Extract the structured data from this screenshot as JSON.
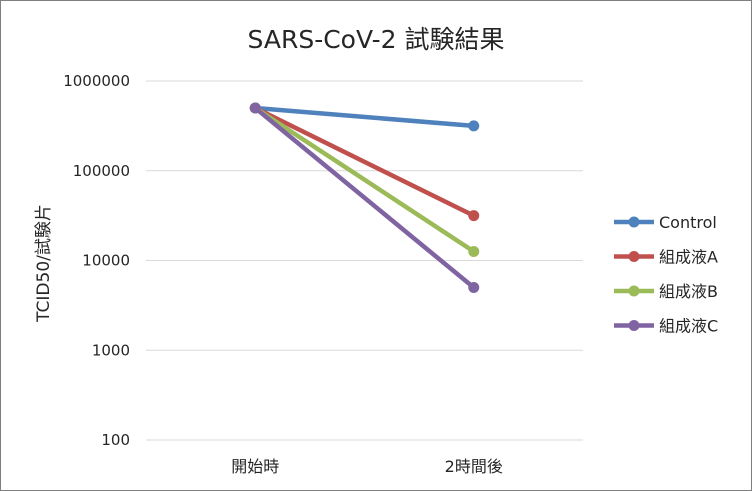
{
  "chart_data": {
    "type": "line",
    "title": "SARS-CoV-2 試験結果",
    "xlabel": "",
    "ylabel": "TCID50/試験片",
    "categories": [
      "開始時",
      "2時間後"
    ],
    "yscale": "log",
    "ylim": [
      100,
      1000000
    ],
    "yticks": [
      "1000000",
      "100000",
      "10000",
      "1000",
      "100"
    ],
    "grid": true,
    "legend_position": "right",
    "series": [
      {
        "name": "Control",
        "color": "#4f81bd",
        "values": [
          500000,
          316000
        ]
      },
      {
        "name": "組成液A",
        "color": "#c0504d",
        "values": [
          500000,
          31600
        ]
      },
      {
        "name": "組成液B",
        "color": "#9bbb59",
        "values": [
          500000,
          12600
        ]
      },
      {
        "name": "組成液C",
        "color": "#8064a2",
        "values": [
          500000,
          5000
        ]
      }
    ]
  }
}
